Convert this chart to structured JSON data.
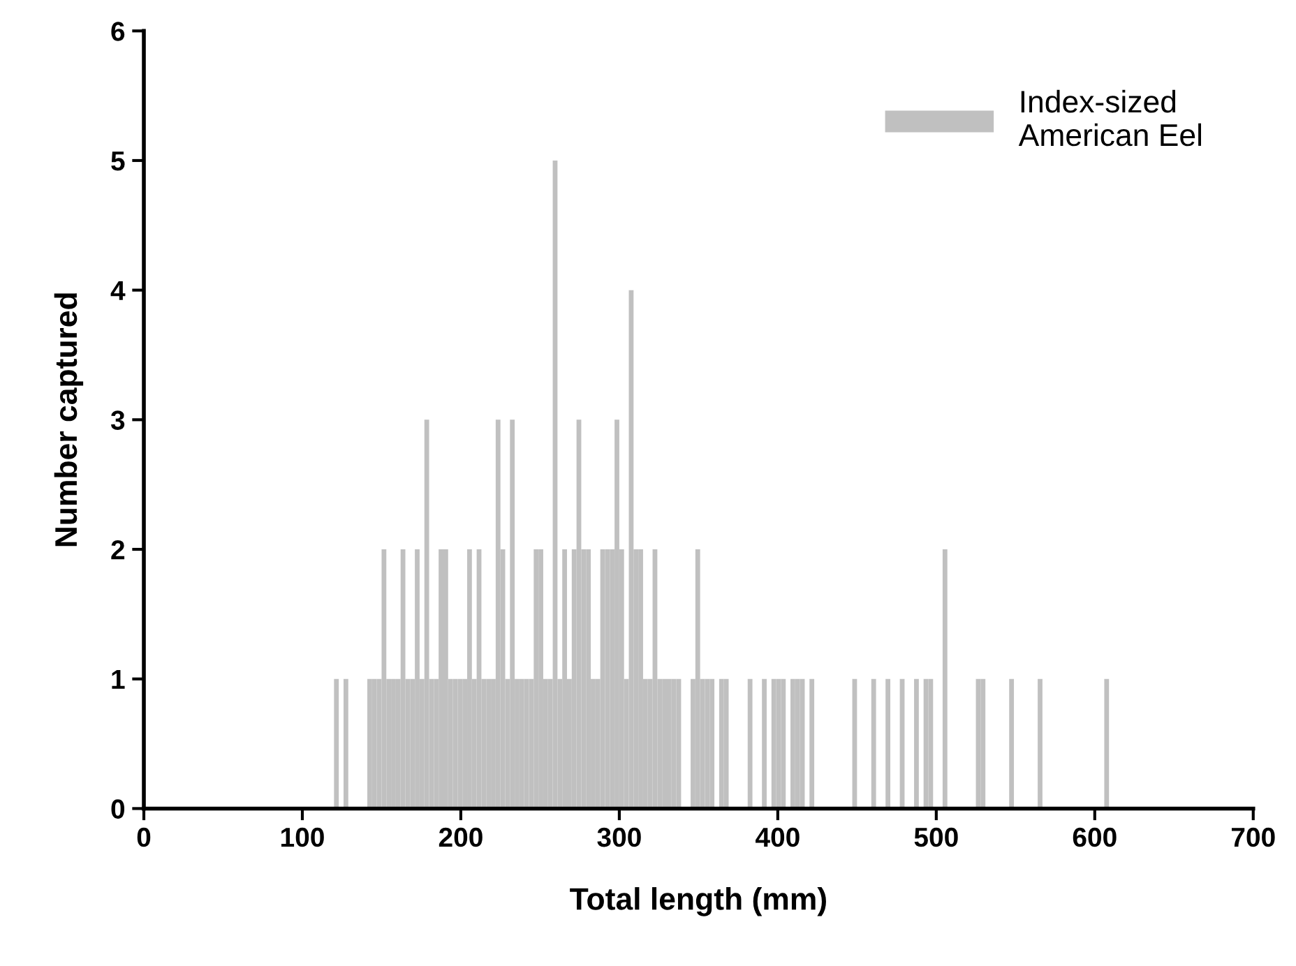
{
  "chart_data": {
    "type": "histogram",
    "xlabel": "Total length (mm)",
    "ylabel": "Number captured",
    "bins": [
      120,
      123,
      126,
      129,
      132,
      135,
      138,
      141,
      144,
      147,
      150,
      153,
      156,
      159,
      162,
      165,
      168,
      171,
      174,
      177,
      180,
      183,
      186,
      189,
      192,
      195,
      198,
      201,
      204,
      207,
      210,
      213,
      216,
      219,
      222,
      225,
      228,
      231,
      234,
      237,
      240,
      243,
      246,
      249,
      252,
      255,
      258,
      261,
      264,
      267,
      270,
      273,
      276,
      279,
      282,
      285,
      288,
      291,
      294,
      297,
      300,
      303,
      306,
      309,
      312,
      315,
      318,
      321,
      324,
      327,
      330,
      333,
      336,
      339,
      342,
      345,
      348,
      351,
      354,
      357,
      360,
      363,
      366,
      369,
      372,
      375,
      378,
      381,
      384,
      387,
      390,
      393,
      396,
      399,
      402,
      405,
      408,
      411,
      414,
      417,
      420,
      423,
      426,
      429,
      432,
      435,
      438,
      441,
      444,
      447,
      450,
      453,
      456,
      459,
      462,
      465,
      468,
      471,
      474,
      477,
      480,
      483,
      486,
      489,
      492,
      495,
      498,
      501,
      504,
      507,
      510,
      513,
      516,
      519,
      522,
      525,
      528,
      531,
      534,
      537,
      540,
      543,
      546,
      549,
      552,
      555,
      558,
      561,
      564,
      567,
      570,
      573,
      576,
      579,
      582,
      585,
      588,
      591,
      594,
      597,
      600,
      603,
      606,
      609,
      612
    ],
    "series": [
      {
        "name": "Index-sized\nAmerican Eel",
        "color": "#c0c0c0",
        "values": [
          1,
          0,
          1,
          0,
          0,
          0,
          0,
          1,
          1,
          1,
          2,
          1,
          1,
          1,
          2,
          1,
          1,
          2,
          1,
          3,
          1,
          1,
          2,
          2,
          1,
          1,
          1,
          1,
          2,
          1,
          2,
          1,
          1,
          1,
          3,
          2,
          1,
          3,
          1,
          1,
          1,
          1,
          2,
          2,
          1,
          1,
          5,
          1,
          2,
          1,
          2,
          3,
          2,
          2,
          1,
          1,
          2,
          2,
          2,
          3,
          2,
          1,
          4,
          2,
          2,
          1,
          1,
          2,
          1,
          1,
          1,
          1,
          1,
          0,
          0,
          1,
          2,
          1,
          1,
          1,
          0,
          1,
          1,
          0,
          0,
          0,
          0,
          1,
          0,
          0,
          1,
          0,
          1,
          1,
          1,
          0,
          1,
          1,
          1,
          0,
          1,
          0,
          0,
          0,
          0,
          0,
          0,
          0,
          0,
          1,
          0,
          0,
          0,
          1,
          0,
          0,
          1,
          0,
          0,
          1,
          0,
          0,
          1,
          0,
          1,
          1,
          0,
          0,
          2,
          0,
          0,
          0,
          0,
          0,
          0,
          1,
          1,
          0,
          0,
          0,
          0,
          0,
          1,
          0,
          0,
          0,
          0,
          0,
          1,
          0,
          0,
          0,
          0,
          0,
          0,
          0,
          0,
          0,
          0,
          0,
          0,
          0,
          1,
          0
        ]
      }
    ],
    "xlim": [
      0,
      700
    ],
    "xticks": [
      0,
      100,
      200,
      300,
      400,
      500,
      600,
      700
    ],
    "ylim": [
      0,
      6
    ],
    "yticks": [
      0,
      1,
      2,
      3,
      4,
      5,
      6
    ],
    "grid": false,
    "legend": "top right"
  }
}
